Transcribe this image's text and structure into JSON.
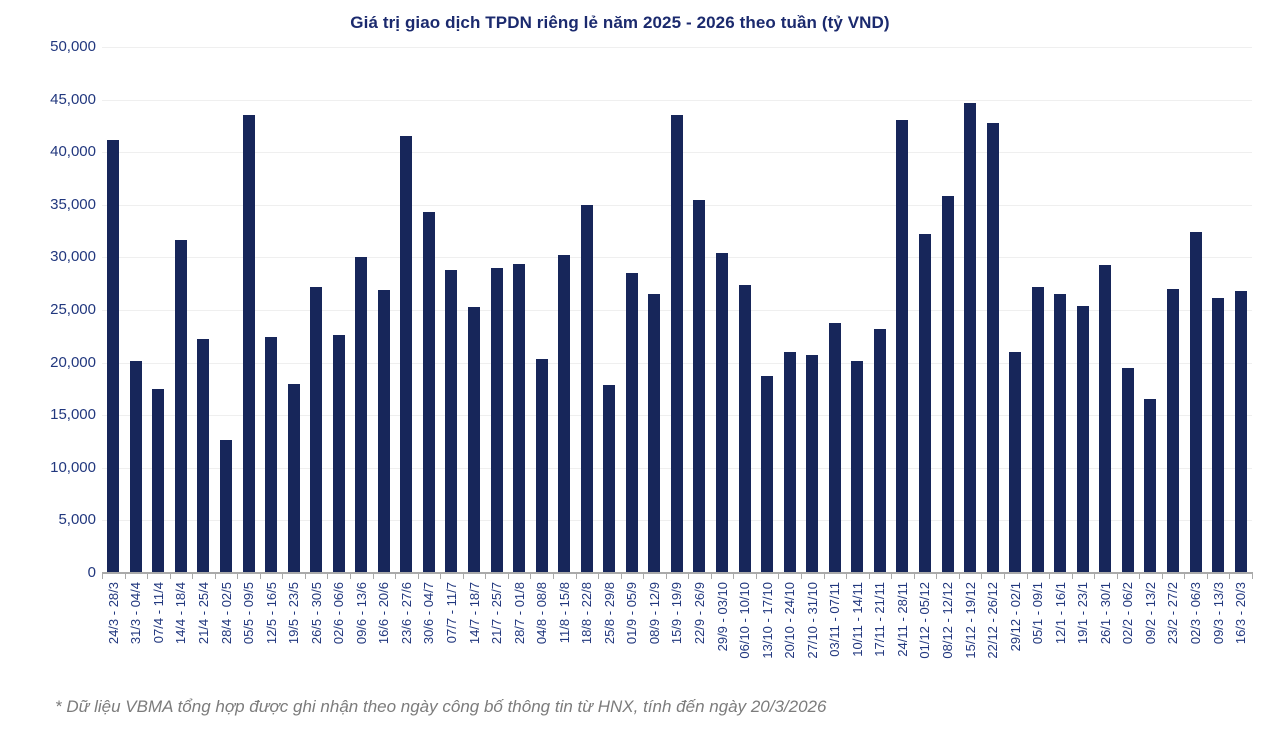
{
  "title": "Giá trị giao dịch TPDN riêng lẻ năm 2025 - 2026 theo tuần (tỷ VND)",
  "footnote": "* Dữ liệu VBMA tổng hợp được ghi nhận theo ngày công bố thông tin từ HNX, tính đến ngày 20/3/2026",
  "colors": {
    "bar": "#17265a",
    "title": "#1b2a6e",
    "axis_labels": "#21377e",
    "gridline": "#efefef",
    "axis_line": "#aaaaaa",
    "footnote": "#7c7c7c"
  },
  "chart_data": {
    "type": "bar",
    "title": "Giá trị giao dịch TPDN riêng lẻ năm 2025 - 2026 theo tuần (tỷ VND)",
    "xlabel": "",
    "ylabel": "",
    "ylim": [
      0,
      50000
    ],
    "ytick_step": 5000,
    "grid": "horizontal",
    "legend": "none",
    "categories": [
      "24/3 - 28/3",
      "31/3 - 04/4",
      "07/4 - 11/4",
      "14/4 - 18/4",
      "21/4 - 25/4",
      "28/4 - 02/5",
      "05/5 - 09/5",
      "12/5 - 16/5",
      "19/5 - 23/5",
      "26/5 - 30/5",
      "02/6 - 06/6",
      "09/6 - 13/6",
      "16/6 - 20/6",
      "23/6 - 27/6",
      "30/6 - 04/7",
      "07/7 - 11/7",
      "14/7 - 18/7",
      "21/7 - 25/7",
      "28/7 - 01/8",
      "04/8 - 08/8",
      "11/8 - 15/8",
      "18/8 - 22/8",
      "25/8 - 29/8",
      "01/9 - 05/9",
      "08/9 - 12/9",
      "15/9 - 19/9",
      "22/9 - 26/9",
      "29/9 - 03/10",
      "06/10 - 10/10",
      "13/10 - 17/10",
      "20/10 - 24/10",
      "27/10 - 31/10",
      "03/11 - 07/11",
      "10/11 - 14/11",
      "17/11 - 21/11",
      "24/11 - 28/11",
      "01/12 - 05/12",
      "08/12 - 12/12",
      "15/12 - 19/12",
      "22/12 - 26/12",
      "29/12 - 02/1",
      "05/1 - 09/1",
      "12/1 - 16/1",
      "19/1 - 23/1",
      "26/1 - 30/1",
      "02/2 - 06/2",
      "09/2 - 13/2",
      "23/2 - 27/2",
      "02/3 - 06/3",
      "09/3 - 13/3",
      "16/3 - 20/3"
    ],
    "values": [
      41200,
      20200,
      17500,
      31700,
      22200,
      12600,
      43500,
      22400,
      18000,
      27200,
      22600,
      30000,
      26900,
      41500,
      34300,
      28800,
      25300,
      29000,
      29400,
      20300,
      30200,
      35000,
      17900,
      28500,
      26500,
      43500,
      35500,
      30400,
      27400,
      18700,
      21000,
      20700,
      23800,
      20200,
      23200,
      43100,
      32200,
      35800,
      44700,
      42800,
      21000,
      27200,
      26500,
      25400,
      29300,
      19500,
      16500,
      27000,
      32400,
      26100,
      26800
    ]
  }
}
